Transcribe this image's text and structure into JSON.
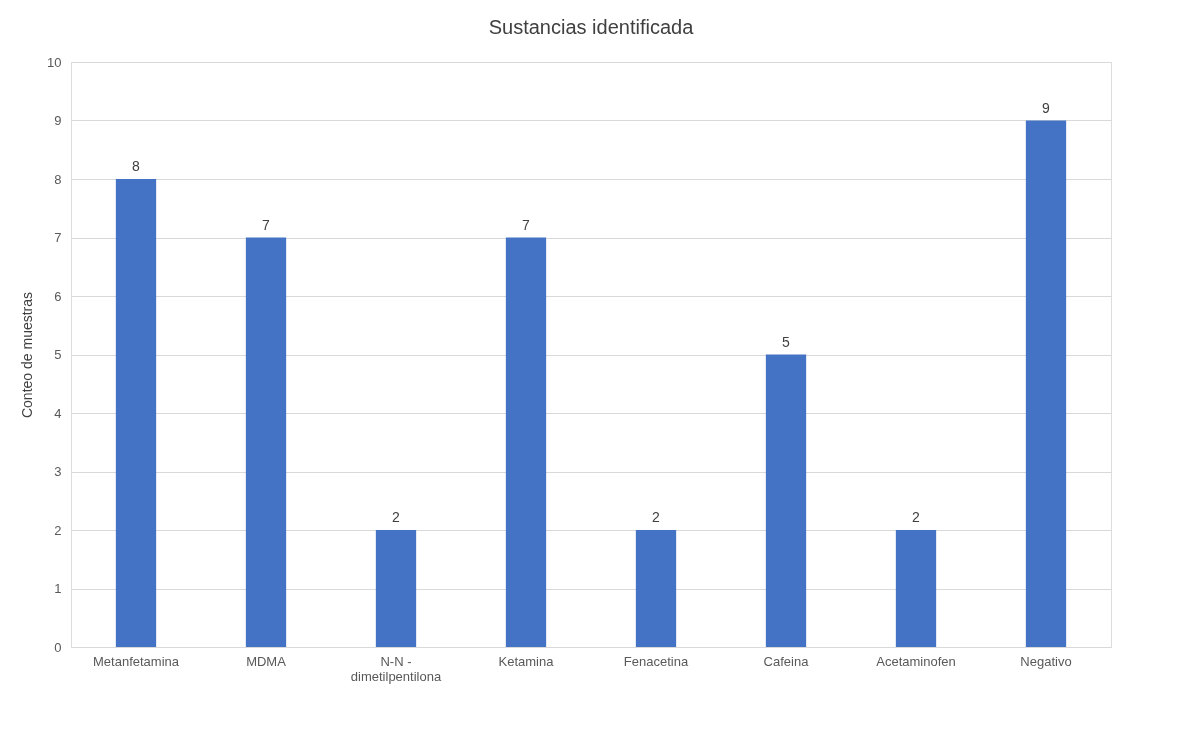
{
  "chart_data": {
    "type": "bar",
    "title": "Sustancias identificada",
    "ylabel": "Conteo  de muestras",
    "categories": [
      "Metanfetamina",
      "MDMA",
      "N-N - dimetilpentilona",
      "Ketamina",
      "Fenacetina",
      "Cafeina",
      "Acetaminofen",
      "Negativo"
    ],
    "values": [
      8,
      7,
      2,
      7,
      2,
      5,
      2,
      9
    ],
    "color": "#4472c4",
    "ylim": [
      0,
      10
    ],
    "yticks": [
      0,
      1,
      2,
      3,
      4,
      5,
      6,
      7,
      8,
      9,
      10
    ],
    "grid": "y",
    "data_labels": true
  }
}
